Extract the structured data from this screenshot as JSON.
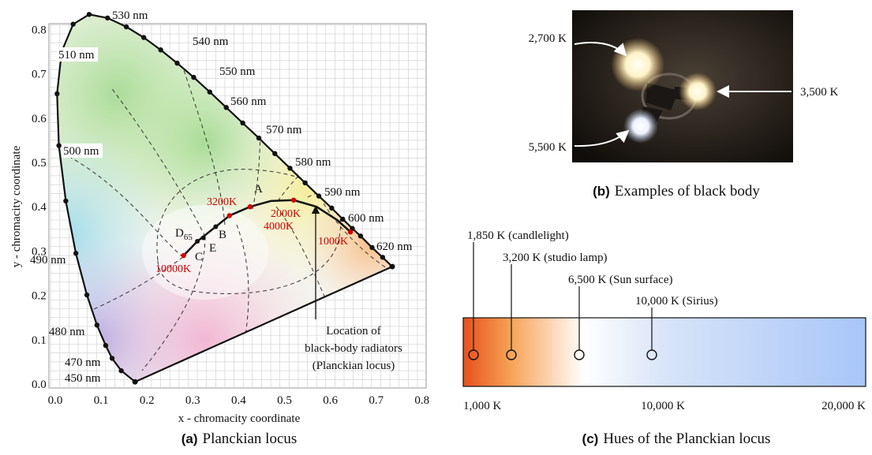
{
  "panels": [
    {
      "caption_tag": "(a)",
      "caption": "Planckian locus",
      "x_axis_label": "x - chromacity coordinate",
      "y_axis_label": "y - chromacity coordinate",
      "x_ticks": [
        "0.0",
        "0.1",
        "0.2",
        "0.3",
        "0.4",
        "0.5",
        "0.6",
        "0.7",
        "0.8"
      ],
      "y_ticks": [
        "0.0",
        "0.1",
        "0.2",
        "0.3",
        "0.4",
        "0.5",
        "0.6",
        "0.7",
        "0.8"
      ],
      "wavelength_labels": [
        "450 nm",
        "470 nm",
        "480 nm",
        "490 nm",
        "500 nm",
        "510 nm",
        "530 nm",
        "540 nm",
        "550 nm",
        "560 nm",
        "570 nm",
        "580 nm",
        "590 nm",
        "600 nm",
        "620 nm"
      ],
      "temperature_labels": [
        "10000K",
        "4000K",
        "3200K",
        "2000K",
        "1000K"
      ],
      "point_labels": [
        "A",
        "B",
        "C",
        "D",
        "E"
      ],
      "d_subscript": "65",
      "annotation": [
        "Location of",
        "black-body radiators",
        "(Planckian locus)"
      ]
    },
    {
      "caption_tag": "(b)",
      "caption": "Examples of black body",
      "labels": [
        "2,700 K",
        "3,500 K",
        "5,500 K"
      ]
    },
    {
      "caption_tag": "(c)",
      "caption": "Hues of the Planckian locus",
      "markers": [
        "1,850 K (candlelight)",
        "3,200 K (studio lamp)",
        "6,500 K (Sun surface)",
        "10,000 K (Sirius)"
      ],
      "axis_labels": [
        "1,000 K",
        "10,000 K",
        "20,000 K"
      ]
    }
  ]
}
